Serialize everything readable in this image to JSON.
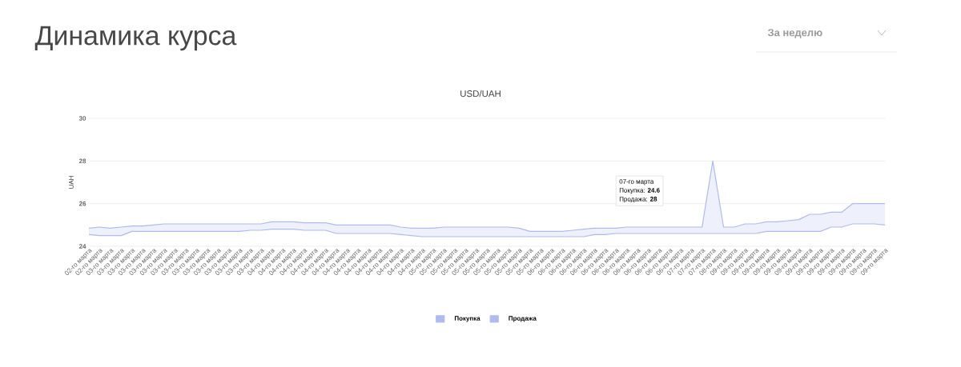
{
  "chart_data": {
    "type": "line",
    "title": "Динамика курса",
    "subtitle": "USD/UAH",
    "ylabel": "UAH",
    "categories": [
      "02-го марта",
      "02-го марта",
      "03-го марта",
      "03-го марта",
      "03-го марта",
      "03-го марта",
      "03-го марта",
      "03-го марта",
      "03-го марта",
      "03-го марта",
      "03-го марта",
      "03-го марта",
      "03-го марта",
      "03-го марта",
      "03-го марта",
      "03-го марта",
      "03-го марта",
      "04-го марта",
      "04-го марта",
      "04-го марта",
      "04-го марта",
      "04-го марта",
      "04-го марта",
      "04-го марта",
      "04-го марта",
      "04-го марта",
      "04-го марта",
      "04-го марта",
      "04-го марта",
      "04-го марта",
      "04-го марта",
      "04-го марта",
      "05-го марта",
      "05-го марта",
      "05-го марта",
      "05-го марта",
      "05-го марта",
      "05-го марта",
      "05-го марта",
      "05-го марта",
      "05-го марта",
      "05-го марта",
      "05-го марта",
      "06-го марта",
      "06-го марта",
      "06-го марта",
      "06-го марта",
      "06-го марта",
      "06-го марта",
      "06-го марта",
      "06-го марта",
      "06-го марта",
      "06-го марта",
      "06-го марта",
      "06-го марта",
      "06-го марта",
      "07-го марта",
      "07-го марта",
      "07-го марта",
      "08-го марта",
      "09-го марта",
      "09-го марта",
      "09-го марта",
      "09-го марта",
      "09-го марта",
      "09-го марта",
      "09-го марта",
      "09-го марта",
      "09-го марта",
      "09-го марта",
      "09-го марта",
      "09-го марта",
      "09-го марта",
      "09-го марта",
      "09-го марта"
    ],
    "series": [
      {
        "name": "Покупка",
        "color": "#aebbec",
        "values": [
          24.55,
          24.5,
          24.5,
          24.5,
          24.7,
          24.7,
          24.7,
          24.7,
          24.7,
          24.7,
          24.7,
          24.7,
          24.7,
          24.7,
          24.7,
          24.75,
          24.75,
          24.8,
          24.8,
          24.8,
          24.75,
          24.75,
          24.75,
          24.6,
          24.6,
          24.6,
          24.6,
          24.6,
          24.6,
          24.55,
          24.5,
          24.45,
          24.45,
          24.45,
          24.45,
          24.45,
          24.45,
          24.45,
          24.45,
          24.45,
          24.45,
          24.45,
          24.45,
          24.45,
          24.45,
          24.45,
          24.45,
          24.55,
          24.55,
          24.6,
          24.6,
          24.6,
          24.6,
          24.6,
          24.6,
          24.6,
          24.6,
          24.6,
          24.6,
          24.6,
          24.6,
          24.6,
          24.6,
          24.7,
          24.7,
          24.7,
          24.7,
          24.7,
          24.7,
          24.9,
          24.9,
          25.05,
          25.05,
          25.05,
          25.0
        ]
      },
      {
        "name": "Продажа",
        "color": "#aebbec",
        "values": [
          24.85,
          24.9,
          24.85,
          24.9,
          24.95,
          24.95,
          25.0,
          25.05,
          25.05,
          25.05,
          25.05,
          25.05,
          25.05,
          25.05,
          25.05,
          25.05,
          25.05,
          25.15,
          25.15,
          25.15,
          25.1,
          25.1,
          25.1,
          25.0,
          25.0,
          25.0,
          25.0,
          25.0,
          25.0,
          24.9,
          24.85,
          24.85,
          24.85,
          24.9,
          24.9,
          24.9,
          24.9,
          24.9,
          24.9,
          24.9,
          24.85,
          24.7,
          24.7,
          24.7,
          24.7,
          24.75,
          24.8,
          24.85,
          24.85,
          24.85,
          24.9,
          24.9,
          24.9,
          24.9,
          24.9,
          24.9,
          24.9,
          24.9,
          28,
          24.9,
          24.9,
          25.05,
          25.05,
          25.15,
          25.15,
          25.2,
          25.25,
          25.5,
          25.5,
          25.6,
          25.6,
          26.0,
          26.0,
          26.0,
          26.0
        ],
        "lower": [
          24.55,
          24.5,
          24.5,
          24.5,
          24.7,
          24.7,
          24.7,
          24.7,
          24.7,
          24.7,
          24.7,
          24.7,
          24.7,
          24.7,
          24.7,
          24.75,
          24.75,
          24.8,
          24.8,
          24.8,
          24.75,
          24.75,
          24.75,
          24.6,
          24.6,
          24.6,
          24.6,
          24.6,
          24.6,
          24.55,
          24.5,
          24.45,
          24.45,
          24.45,
          24.45,
          24.45,
          24.45,
          24.45,
          24.45,
          24.45,
          24.45,
          24.45,
          24.45,
          24.45,
          24.45,
          24.45,
          24.45,
          24.55,
          24.55,
          24.6,
          24.6,
          24.6,
          24.6,
          24.6,
          24.6,
          24.6,
          24.6,
          24.6,
          24.6,
          24.6,
          24.6,
          24.6,
          24.6,
          24.7,
          24.7,
          24.7,
          24.7,
          24.7,
          24.7,
          24.9,
          24.9,
          25.05,
          25.05,
          25.05,
          25.0
        ],
        "upper": [
          24.85,
          24.9,
          24.85,
          24.9,
          24.95,
          24.95,
          25.0,
          25.05,
          25.05,
          25.05,
          25.05,
          25.05,
          25.05,
          25.05,
          25.05,
          25.05,
          25.05,
          25.15,
          25.15,
          25.15,
          25.1,
          25.1,
          25.1,
          25.0,
          25.0,
          25.0,
          25.0,
          25.0,
          25.0,
          24.9,
          24.85,
          24.85,
          24.85,
          24.9,
          24.9,
          24.9,
          24.9,
          24.9,
          24.9,
          24.9,
          24.85,
          24.7,
          24.7,
          24.7,
          24.7,
          24.75,
          24.8,
          24.85,
          24.85,
          24.85,
          24.9,
          24.9,
          24.9,
          24.9,
          24.9,
          24.9,
          24.9,
          24.9,
          28,
          24.9,
          24.9,
          25.05,
          25.05,
          25.15,
          25.15,
          25.2,
          25.25,
          25.5,
          25.5,
          25.6,
          25.6,
          26.0,
          26.0,
          26.0,
          26.0
        ]
      }
    ],
    "ylim": [
      24,
      30
    ],
    "yticks": [
      24,
      26,
      28,
      30
    ],
    "grid": "y",
    "legend": "bottom",
    "annotations": [
      "За неделю",
      "07-го марта",
      "Покупка: **24.6**",
      "Продажа: **28**"
    ]
  }
}
